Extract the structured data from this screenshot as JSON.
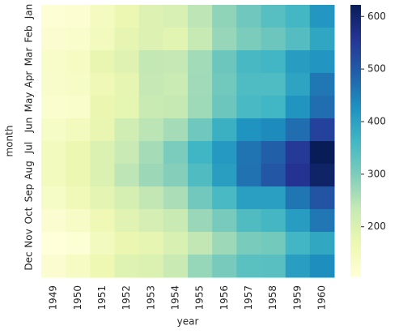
{
  "chart_data": {
    "type": "heatmap",
    "x_label": "year",
    "y_label": "month",
    "x": [
      "1949",
      "1950",
      "1951",
      "1952",
      "1953",
      "1954",
      "1955",
      "1956",
      "1957",
      "1958",
      "1959",
      "1960"
    ],
    "y": [
      "Jan",
      "Feb",
      "Mar",
      "Apr",
      "May",
      "Jun",
      "Jul",
      "Aug",
      "Sep",
      "Oct",
      "Nov",
      "Dec"
    ],
    "values": [
      [
        112,
        115,
        145,
        171,
        196,
        204,
        242,
        284,
        315,
        340,
        360,
        417
      ],
      [
        118,
        126,
        150,
        180,
        196,
        188,
        233,
        277,
        301,
        318,
        342,
        391
      ],
      [
        132,
        141,
        178,
        193,
        236,
        235,
        267,
        317,
        356,
        362,
        406,
        419
      ],
      [
        129,
        135,
        163,
        181,
        235,
        227,
        269,
        313,
        348,
        348,
        396,
        461
      ],
      [
        121,
        125,
        172,
        183,
        229,
        234,
        270,
        318,
        355,
        363,
        420,
        472
      ],
      [
        135,
        149,
        178,
        218,
        243,
        264,
        315,
        374,
        422,
        435,
        472,
        535
      ],
      [
        148,
        170,
        199,
        230,
        264,
        302,
        364,
        413,
        465,
        491,
        548,
        622
      ],
      [
        148,
        170,
        199,
        242,
        272,
        293,
        347,
        405,
        467,
        505,
        559,
        606
      ],
      [
        136,
        158,
        184,
        209,
        237,
        259,
        312,
        355,
        404,
        404,
        463,
        508
      ],
      [
        119,
        133,
        162,
        191,
        211,
        229,
        274,
        306,
        347,
        359,
        407,
        461
      ],
      [
        104,
        114,
        146,
        172,
        180,
        203,
        237,
        271,
        305,
        310,
        362,
        390
      ],
      [
        118,
        140,
        166,
        194,
        201,
        229,
        278,
        306,
        336,
        337,
        405,
        432
      ]
    ],
    "colormap": "YlGnBu",
    "clim": [
      104,
      622
    ],
    "cticks": [
      200,
      300,
      400,
      500,
      600
    ]
  }
}
